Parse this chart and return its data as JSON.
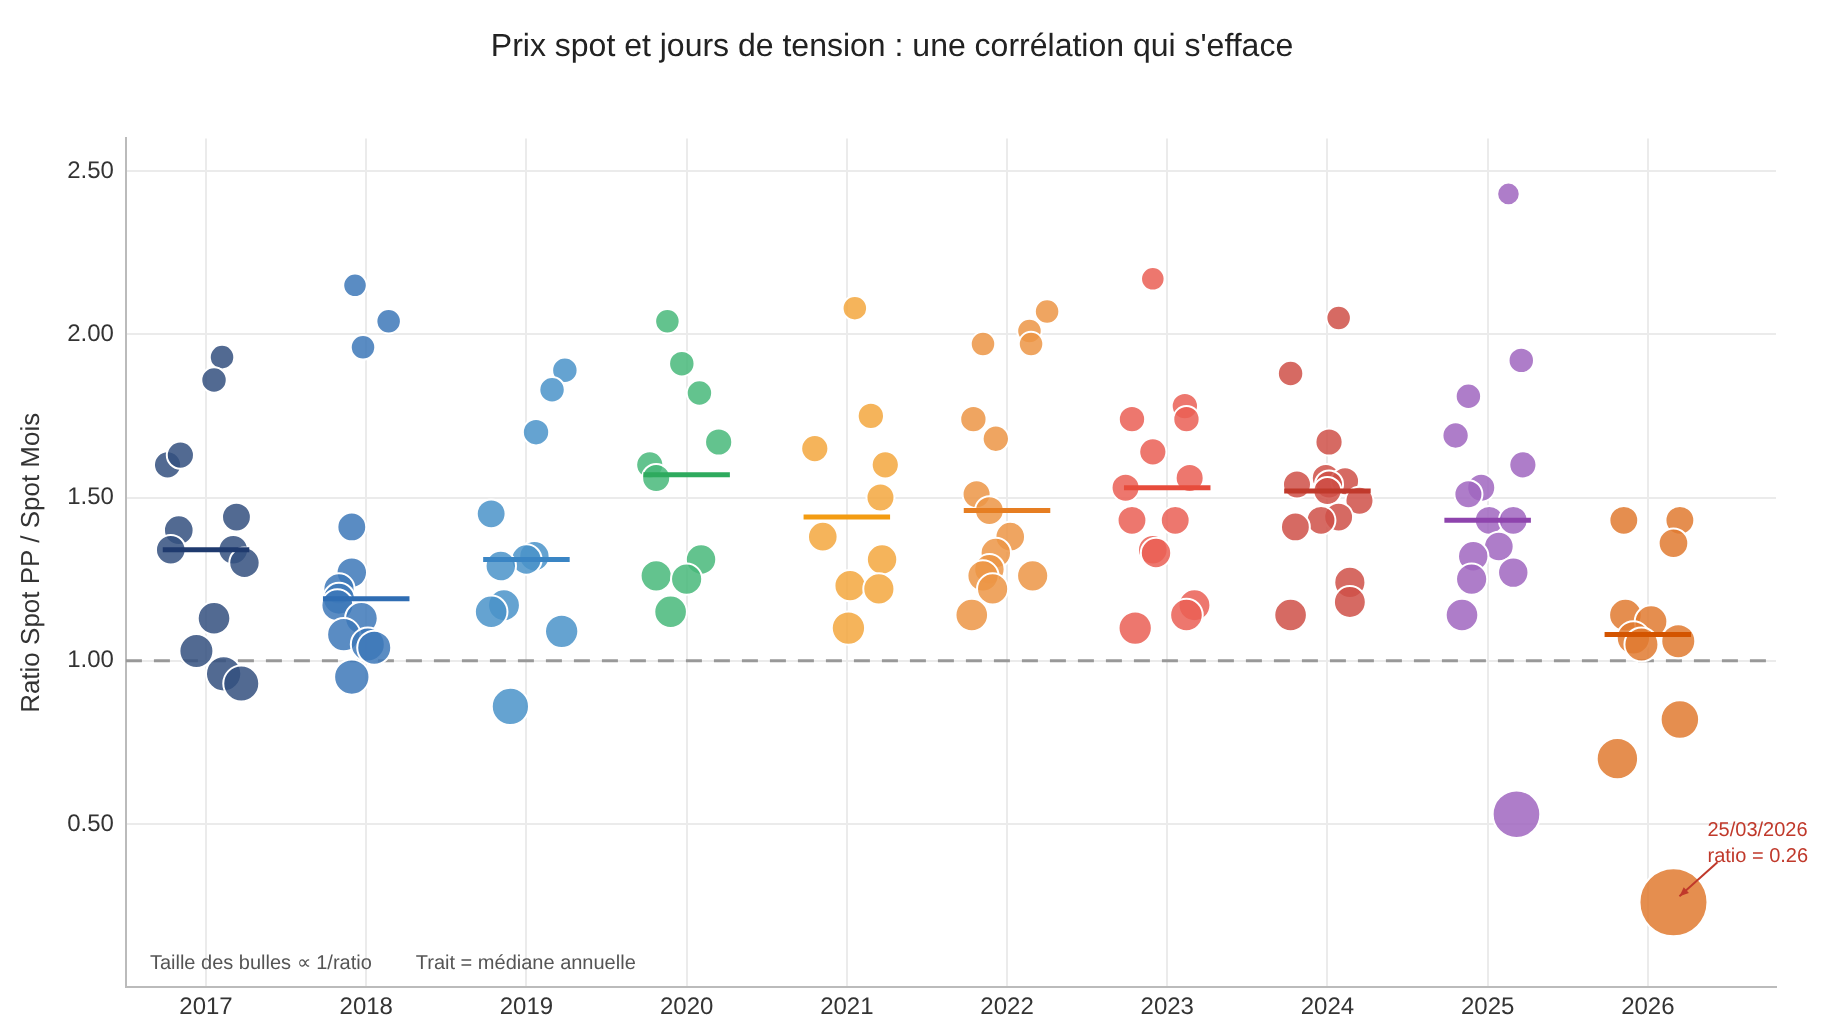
{
  "chart_data": {
    "type": "bubble",
    "title": "Prix spot et jours de tension : une corrélation qui s'efface",
    "ylabel": "Ratio Spot PP / Spot Mois",
    "xlim": [
      2016.5,
      2026.8
    ],
    "xticks": [
      2017,
      2018,
      2019,
      2020,
      2021,
      2022,
      2023,
      2024,
      2025,
      2026
    ],
    "ylim": [
      0,
      2.6
    ],
    "yticks": [
      {
        "value": 0.5,
        "label": "0.50"
      },
      {
        "value": 1,
        "label": "1.00"
      },
      {
        "value": 1.5,
        "label": "1.50"
      },
      {
        "value": 2,
        "label": "2.00"
      },
      {
        "value": 2.5,
        "label": "2.50"
      }
    ],
    "grid": true,
    "legend": false,
    "ref_lines": [
      {
        "axis": "y",
        "value": 1,
        "color": "#999999",
        "line_style": "dashed"
      }
    ],
    "annotations": [
      "Taille des bulles ∝ 1/ratio",
      "Trait = médiane annuelle",
      {
        "text": "25/03/2026\nratio = 0.26",
        "x": 2026.16,
        "y": 0.26
      }
    ],
    "series": [
      {
        "color": "#34507f",
        "x": [
          2016.76,
          2016.84,
          2017.1,
          2017.05,
          2016.83,
          2016.78,
          2017.19,
          2017.17,
          2017.24,
          2017.05,
          2016.94,
          2017.11,
          2017.22
        ],
        "values": [
          1.6,
          1.63,
          1.93,
          1.86,
          1.4,
          1.34,
          1.44,
          1.34,
          1.3,
          1.13,
          1.03,
          0.96,
          0.93
        ],
        "sizes": [
          0.16,
          0.16,
          0.13,
          0.14,
          0.19,
          0.19,
          0.18,
          0.19,
          0.2,
          0.23,
          0.25,
          0.27,
          0.28
        ]
      },
      {
        "color": "#3d78b8",
        "x": [
          2017.93,
          2018.14,
          2017.98,
          2017.91,
          2017.91,
          2017.83,
          2017.83,
          2017.82,
          2017.97,
          2017.86,
          2018.01,
          2018.05,
          2017.91
        ],
        "values": [
          2.15,
          2.04,
          1.96,
          1.41,
          1.27,
          1.22,
          1.19,
          1.17,
          1.13,
          1.08,
          1.05,
          1.04,
          0.95
        ],
        "sizes": [
          0.12,
          0.13,
          0.13,
          0.18,
          0.2,
          0.21,
          0.22,
          0.22,
          0.23,
          0.24,
          0.25,
          0.25,
          0.27
        ]
      },
      {
        "color": "#4a93c9",
        "x": [
          2019.24,
          2019.16,
          2019.06,
          2018.78,
          2019.05,
          2019.0,
          2018.84,
          2018.86,
          2018.78,
          2019.22,
          2018.9
        ],
        "values": [
          1.89,
          1.83,
          1.7,
          1.45,
          1.32,
          1.31,
          1.29,
          1.17,
          1.15,
          1.09,
          0.86
        ],
        "sizes": [
          0.14,
          0.14,
          0.15,
          0.18,
          0.2,
          0.2,
          0.2,
          0.22,
          0.23,
          0.24,
          0.3
        ]
      },
      {
        "color": "#48b97a",
        "x": [
          2019.88,
          2019.97,
          2020.08,
          2020.2,
          2019.77,
          2019.81,
          2020.09,
          2019.81,
          2020.0,
          2019.9
        ],
        "values": [
          2.04,
          1.91,
          1.82,
          1.67,
          1.6,
          1.56,
          1.31,
          1.26,
          1.25,
          1.15
        ],
        "sizes": [
          0.13,
          0.14,
          0.14,
          0.16,
          0.16,
          0.17,
          0.2,
          0.21,
          0.21,
          0.23
        ]
      },
      {
        "color": "#f3a73e",
        "x": [
          2021.05,
          2021.15,
          2020.8,
          2021.24,
          2021.21,
          2020.85,
          2021.22,
          2021.02,
          2021.2,
          2021.01
        ],
        "values": [
          2.08,
          1.75,
          1.65,
          1.6,
          1.5,
          1.38,
          1.31,
          1.23,
          1.22,
          1.1
        ],
        "sizes": [
          0.13,
          0.15,
          0.16,
          0.16,
          0.17,
          0.19,
          0.2,
          0.21,
          0.21,
          0.24
        ]
      },
      {
        "color": "#ec9545",
        "x": [
          2022.25,
          2022.14,
          2022.15,
          2021.85,
          2021.79,
          2021.93,
          2021.81,
          2021.89,
          2022.02,
          2021.93,
          2021.89,
          2021.85,
          2021.91,
          2022.16,
          2021.78
        ],
        "values": [
          2.07,
          2.01,
          1.97,
          1.97,
          1.74,
          1.68,
          1.51,
          1.46,
          1.38,
          1.33,
          1.28,
          1.26,
          1.22,
          1.26,
          1.14
        ],
        "sizes": [
          0.13,
          0.13,
          0.13,
          0.13,
          0.15,
          0.15,
          0.17,
          0.18,
          0.19,
          0.2,
          0.2,
          0.21,
          0.21,
          0.21,
          0.23
        ]
      },
      {
        "color": "#ea5f55",
        "x": [
          2022.91,
          2023.11,
          2023.12,
          2022.78,
          2022.91,
          2023.14,
          2022.74,
          2022.78,
          2023.05,
          2022.91,
          2022.93,
          2023.17,
          2023.12,
          2022.8
        ],
        "values": [
          2.17,
          1.78,
          1.74,
          1.74,
          1.64,
          1.56,
          1.53,
          1.43,
          1.43,
          1.34,
          1.33,
          1.17,
          1.14,
          1.1
        ],
        "sizes": [
          0.12,
          0.15,
          0.15,
          0.15,
          0.16,
          0.17,
          0.17,
          0.18,
          0.18,
          0.19,
          0.2,
          0.22,
          0.23,
          0.24
        ]
      },
      {
        "color": "#cf5048",
        "x": [
          2024.07,
          2023.77,
          2024.01,
          2023.99,
          2024.11,
          2023.81,
          2024.01,
          2024.0,
          2024.2,
          2024.07,
          2023.96,
          2023.8,
          2024.14,
          2024.14,
          2023.77
        ],
        "values": [
          2.05,
          1.88,
          1.67,
          1.56,
          1.55,
          1.54,
          1.54,
          1.52,
          1.49,
          1.44,
          1.43,
          1.41,
          1.24,
          1.18,
          1.14
        ],
        "sizes": [
          0.13,
          0.14,
          0.16,
          0.17,
          0.17,
          0.17,
          0.17,
          0.17,
          0.17,
          0.18,
          0.18,
          0.18,
          0.21,
          0.22,
          0.23
        ]
      },
      {
        "color": "#a066c0",
        "x": [
          2025.13,
          2025.21,
          2024.88,
          2024.8,
          2025.22,
          2024.96,
          2024.88,
          2025.01,
          2025.16,
          2025.07,
          2024.91,
          2025.16,
          2024.9,
          2024.84,
          2025.18
        ],
        "values": [
          2.43,
          1.92,
          1.81,
          1.69,
          1.6,
          1.53,
          1.51,
          1.43,
          1.43,
          1.35,
          1.32,
          1.27,
          1.25,
          1.14,
          0.53
        ],
        "sizes": [
          0.11,
          0.14,
          0.14,
          0.15,
          0.16,
          0.17,
          0.17,
          0.18,
          0.18,
          0.19,
          0.2,
          0.2,
          0.21,
          0.23,
          0.49
        ]
      },
      {
        "color": "#e07a30",
        "x": [
          2025.85,
          2026.2,
          2026.16,
          2025.86,
          2026.02,
          2025.91,
          2025.96,
          2026.19,
          2026.2,
          2025.81,
          2026.16
        ],
        "values": [
          1.43,
          1.43,
          1.36,
          1.14,
          1.12,
          1.07,
          1.05,
          1.06,
          0.82,
          0.7,
          0.26
        ],
        "sizes": [
          0.18,
          0.18,
          0.19,
          0.23,
          0.23,
          0.24,
          0.25,
          0.25,
          0.32,
          0.37,
          1
        ]
      },
      {
        "type": "line",
        "color": "#1f3a6e",
        "x": [
          2016.73,
          2017.27
        ],
        "values": [
          1.34,
          1.34
        ]
      },
      {
        "type": "line",
        "color": "#2f6db3",
        "x": [
          2017.73,
          2018.27
        ],
        "values": [
          1.19,
          1.19
        ]
      },
      {
        "type": "line",
        "color": "#3a85c4",
        "x": [
          2018.73,
          2019.27
        ],
        "values": [
          1.31,
          1.31
        ]
      },
      {
        "type": "line",
        "color": "#2eaa5e",
        "x": [
          2019.73,
          2020.27
        ],
        "values": [
          1.57,
          1.57
        ]
      },
      {
        "type": "line",
        "color": "#f39c12",
        "x": [
          2020.73,
          2021.27
        ],
        "values": [
          1.44,
          1.44
        ]
      },
      {
        "type": "line",
        "color": "#e67e22",
        "x": [
          2021.73,
          2022.27
        ],
        "values": [
          1.46,
          1.46
        ]
      },
      {
        "type": "line",
        "color": "#e74c3c",
        "x": [
          2022.73,
          2023.27
        ],
        "values": [
          1.53,
          1.53
        ]
      },
      {
        "type": "line",
        "color": "#c0392b",
        "x": [
          2023.73,
          2024.27
        ],
        "values": [
          1.52,
          1.52
        ]
      },
      {
        "type": "line",
        "color": "#8e44ad",
        "x": [
          2024.73,
          2025.27
        ],
        "values": [
          1.43,
          1.43
        ]
      },
      {
        "type": "line",
        "color": "#d35400",
        "x": [
          2025.73,
          2026.27
        ],
        "values": [
          1.08,
          1.08
        ]
      }
    ]
  }
}
